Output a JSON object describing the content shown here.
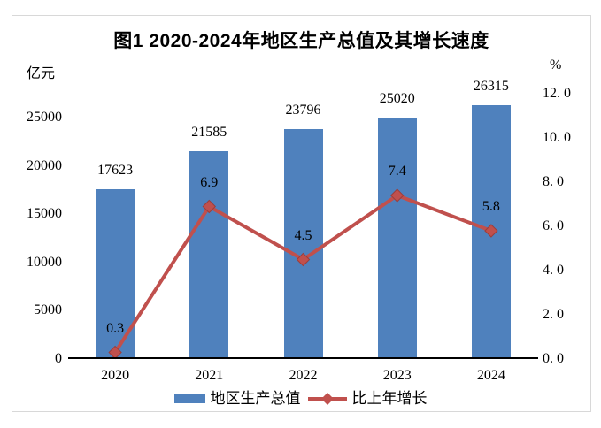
{
  "title": "图1 2020-2024年地区生产总值及其增长速度",
  "colors": {
    "bar": "#4F81BD",
    "line": "#C0504D",
    "axis_line": "#000000",
    "frame_border": "#D8D8D8",
    "text": "#000000"
  },
  "chart_data": {
    "type": "bar",
    "subtype": "combo-bar-line",
    "title": "图1 2020-2024年地区生产总值及其增长速度",
    "categories": [
      "2020",
      "2021",
      "2022",
      "2023",
      "2024"
    ],
    "series": [
      {
        "name": "地区生产总值",
        "type": "bar",
        "axis": "left",
        "unit": "亿元",
        "color": "#4F81BD",
        "values": [
          17623,
          21585,
          23796,
          25020,
          26315
        ]
      },
      {
        "name": "比上年增长",
        "type": "line",
        "axis": "right",
        "unit": "%",
        "color": "#C0504D",
        "marker": "diamond",
        "values": [
          0.3,
          6.9,
          4.5,
          7.4,
          5.8
        ]
      }
    ],
    "left_axis": {
      "title": "亿元",
      "min": 0,
      "max": 27500,
      "tick_step": 5000,
      "tick_values": [
        0,
        5000,
        10000,
        15000,
        20000,
        25000
      ],
      "tick_labels": [
        "0",
        "5000",
        "10000",
        "15000",
        "20000",
        "25000"
      ]
    },
    "right_axis": {
      "title": "%",
      "min": 0,
      "max": 12,
      "tick_step": 2,
      "tick_values": [
        0,
        2,
        4,
        6,
        8,
        10,
        12
      ],
      "tick_labels": [
        "0. 0",
        "2. 0",
        "4. 0",
        "6. 0",
        "8. 0",
        "10. 0",
        "12. 0"
      ],
      "data_labels": [
        "0.3",
        "6.9",
        "4.5",
        "7.4",
        "5.8"
      ]
    },
    "grid": false,
    "legend_position": "bottom"
  },
  "legend": {
    "items": [
      {
        "label": "地区生产总值",
        "swatch": "bar",
        "color": "#4F81BD"
      },
      {
        "label": "比上年增长",
        "swatch": "line-diamond",
        "color": "#C0504D"
      }
    ]
  }
}
